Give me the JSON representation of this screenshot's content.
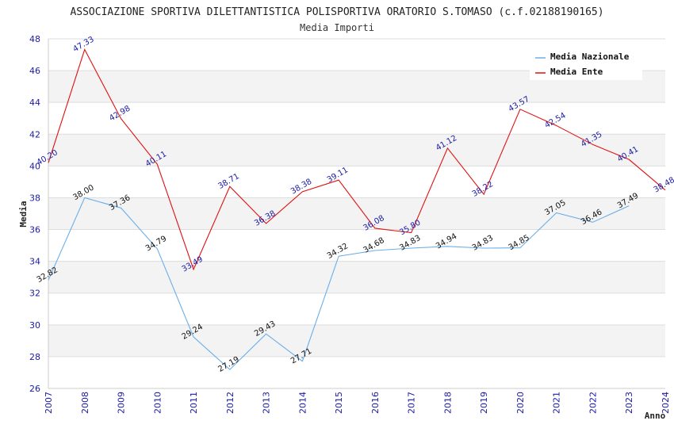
{
  "chart_data": {
    "type": "line",
    "title": "ASSOCIAZIONE SPORTIVA DILETTANTISTICA POLISPORTIVA ORATORIO S.TOMASO (c.f.02188190165)",
    "subtitle": "Media Importi",
    "xlabel": "Anno",
    "ylabel": "Media",
    "ylim": [
      26,
      48
    ],
    "yticks": [
      "26",
      "28",
      "30",
      "32",
      "34",
      "36",
      "38",
      "40",
      "42",
      "44",
      "46",
      "48"
    ],
    "categories": [
      "2007",
      "2008",
      "2009",
      "2010",
      "2011",
      "2012",
      "2013",
      "2014",
      "2015",
      "2016",
      "2017",
      "2018",
      "2019",
      "2020",
      "2021",
      "2022",
      "2023",
      "2024"
    ],
    "legend_position": "top-right",
    "series": [
      {
        "name": "Media Nazionale",
        "color": "#6aaee8",
        "label_color": "#111111",
        "values": [
          32.82,
          38.0,
          37.36,
          34.79,
          29.24,
          27.19,
          29.43,
          27.71,
          34.32,
          34.68,
          34.83,
          34.94,
          34.83,
          34.85,
          37.05,
          36.46,
          37.49,
          null
        ],
        "labels": [
          "32.82",
          "38.00",
          "37.36",
          "34.79",
          "29.24",
          "27.19",
          "29.43",
          "27.71",
          "34.32",
          "34.68",
          "34.83",
          "34.94",
          "34.83",
          "34.85",
          "37.05",
          "36.46",
          "37.49",
          null
        ]
      },
      {
        "name": "Media Ente",
        "color": "#e01010",
        "label_color": "#1a1aa6",
        "values": [
          40.2,
          47.33,
          42.98,
          40.11,
          33.49,
          38.71,
          36.38,
          38.38,
          39.11,
          36.08,
          35.8,
          41.12,
          38.22,
          43.57,
          42.54,
          41.35,
          40.41,
          38.48
        ],
        "labels": [
          "40.20",
          "47.33",
          "42.98",
          "40.11",
          "33.49",
          "38.71",
          "36.38",
          "38.38",
          "39.11",
          "36.08",
          "35.80",
          "41.12",
          "38.22",
          "43.57",
          "42.54",
          "41.35",
          "40.41",
          "38.48"
        ]
      }
    ]
  }
}
